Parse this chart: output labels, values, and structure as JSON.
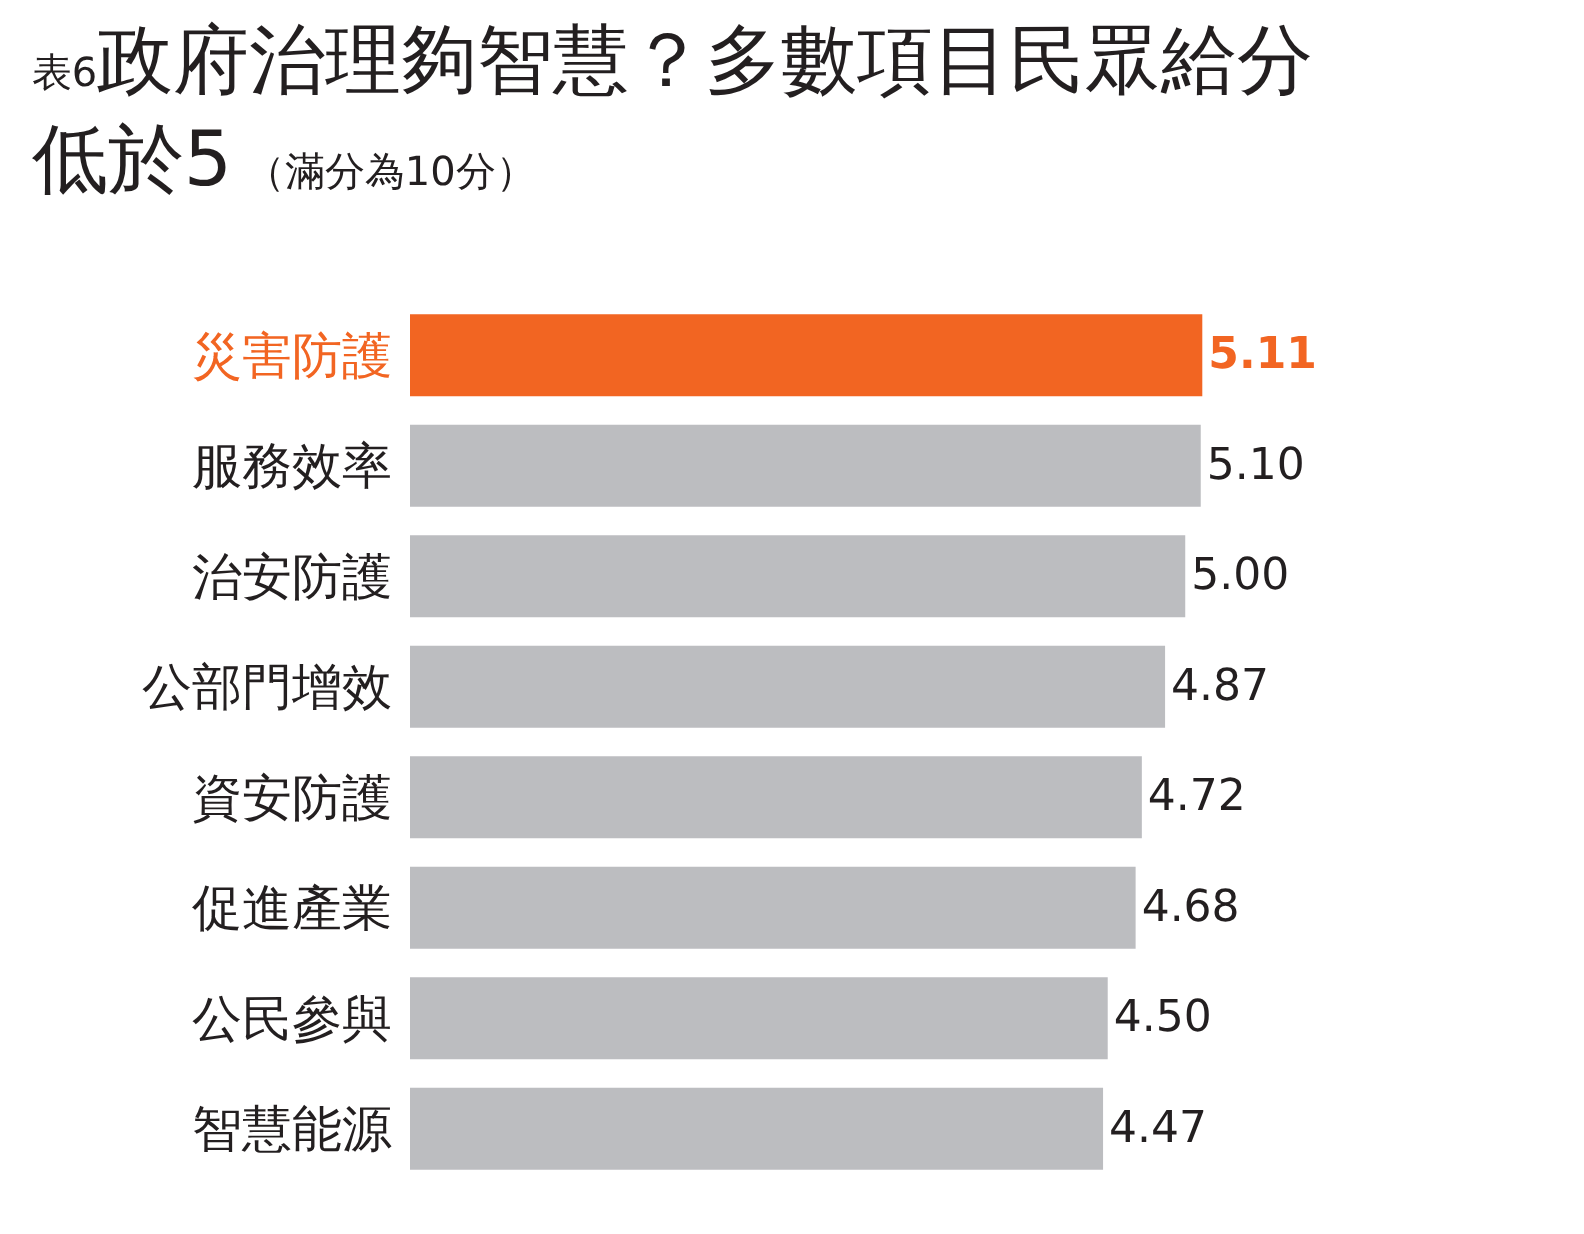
{
  "chart_data": {
    "type": "bar",
    "orientation": "horizontal",
    "title": "表6政府治理夠智慧？多數項目民眾給分低於5",
    "subtitle": "（滿分為10分）",
    "categories": [
      "災害防護",
      "服務效率",
      "治安防護",
      "公部門增效",
      "資安防護",
      "促進產業",
      "公民參與",
      "智慧能源"
    ],
    "values": [
      5.11,
      5.1,
      5.0,
      4.87,
      4.72,
      4.68,
      4.5,
      4.47
    ],
    "colors": [
      "#f26522",
      "#bcbdc0",
      "#bcbdc0",
      "#bcbdc0",
      "#bcbdc0",
      "#bcbdc0",
      "#bcbdc0",
      "#bcbdc0"
    ],
    "value_labels": [
      "5.11",
      "5.10",
      "5.00",
      "4.87",
      "4.72",
      "4.68",
      "4.50",
      "4.47"
    ]
  }
}
